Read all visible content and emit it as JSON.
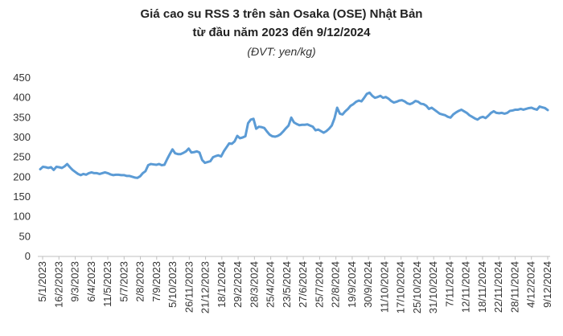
{
  "chart_data": {
    "type": "line",
    "title": "Giá cao su RSS 3 trên sàn Osaka (OSE) Nhật Bản",
    "title_line2": "từ đầu năm 2023 đến 9/12/2024",
    "subtitle": "(ĐVT: yen/kg)",
    "xlabel": "",
    "ylabel": "",
    "ylim": [
      0,
      450
    ],
    "yticks": [
      0,
      50,
      100,
      150,
      200,
      250,
      300,
      350,
      400,
      450
    ],
    "grid": false,
    "legend": "none",
    "colors": {
      "line": "#5b9bd5",
      "axis": "#bfbfbf"
    },
    "x_tick_labels": [
      "5/1/2023",
      "16/2/2023",
      "9/3/2023",
      "6/4/2023",
      "11/5/2023",
      "5/7/2023",
      "2/8/2023",
      "7/9/2023",
      "5/10/2023",
      "26/11/2023",
      "21/12/2023",
      "18/1/2024",
      "29/2/2024",
      "28/3/2024",
      "25/4/2024",
      "23/5/2024",
      "27/6/2024",
      "25/7/2024",
      "22/8/2024",
      "19/9/2024",
      "30/9/2024",
      "11/10/2024",
      "17/10/2024",
      "25/10/2024",
      "31/10/2024",
      "7/11/2024",
      "12/11/2024",
      "18/11/2024",
      "22/11/2024",
      "28/11/2024",
      "4/12/2024",
      "9/12/2024"
    ],
    "series": [
      {
        "values": [
          220,
          226,
          225,
          223,
          225,
          218,
          226,
          225,
          223,
          227,
          233,
          225,
          218,
          213,
          208,
          205,
          208,
          206,
          210,
          212,
          210,
          210,
          208,
          210,
          212,
          210,
          207,
          205,
          206,
          206,
          205,
          205,
          203,
          203,
          201,
          199,
          198,
          202,
          210,
          215,
          230,
          233,
          232,
          231,
          233,
          230,
          231,
          245,
          258,
          270,
          260,
          258,
          258,
          261,
          265,
          272,
          262,
          263,
          265,
          262,
          243,
          236,
          238,
          240,
          250,
          253,
          255,
          252,
          265,
          275,
          285,
          284,
          290,
          304,
          298,
          300,
          303,
          336,
          345,
          347,
          322,
          327,
          326,
          324,
          315,
          307,
          303,
          302,
          304,
          308,
          315,
          323,
          330,
          350,
          338,
          334,
          331,
          332,
          332,
          333,
          330,
          327,
          318,
          320,
          316,
          312,
          316,
          322,
          330,
          348,
          375,
          360,
          358,
          366,
          372,
          380,
          384,
          390,
          393,
          391,
          400,
          410,
          413,
          405,
          400,
          402,
          405,
          400,
          402,
          398,
          392,
          388,
          390,
          393,
          394,
          391,
          386,
          384,
          387,
          392,
          390,
          385,
          384,
          380,
          372,
          375,
          370,
          365,
          360,
          358,
          356,
          352,
          350,
          358,
          363,
          367,
          370,
          366,
          362,
          356,
          352,
          348,
          345,
          350,
          352,
          349,
          355,
          362,
          366,
          362,
          361,
          362,
          360,
          362,
          367,
          368,
          370,
          370,
          372,
          370,
          372,
          374,
          375,
          372,
          370,
          378,
          376,
          374,
          369
        ]
      }
    ]
  }
}
